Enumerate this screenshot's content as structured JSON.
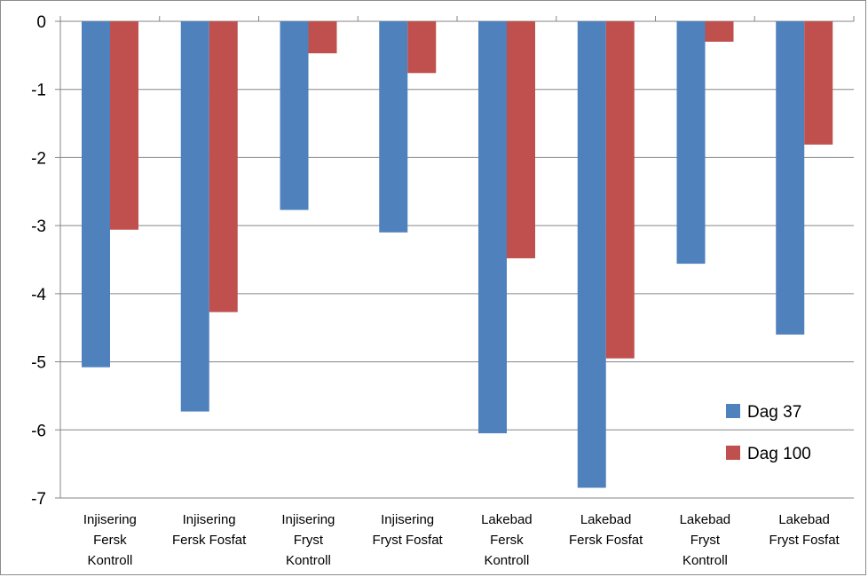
{
  "chart_data": {
    "type": "bar",
    "categories": [
      [
        "Injisering",
        "Fersk",
        "Kontroll"
      ],
      [
        "Injisering",
        "Fersk Fosfat"
      ],
      [
        "Injisering",
        "Fryst",
        "Kontroll"
      ],
      [
        "Injisering",
        "Fryst Fosfat"
      ],
      [
        "Lakebad",
        "Fersk",
        "Kontroll"
      ],
      [
        "Lakebad",
        "Fersk  Fosfat"
      ],
      [
        "Lakebad",
        "Fryst",
        "Kontroll"
      ],
      [
        "Lakebad",
        "Fryst Fosfat"
      ]
    ],
    "series": [
      {
        "name": "Dag 37",
        "color": "#4f81bd",
        "values": [
          -5.08,
          -5.73,
          -2.77,
          -3.1,
          -6.05,
          -6.85,
          -3.56,
          -4.6
        ]
      },
      {
        "name": "Dag 100",
        "color": "#c0504d",
        "values": [
          -3.06,
          -4.27,
          -0.47,
          -0.76,
          -3.48,
          -4.95,
          -0.3,
          -1.81
        ]
      }
    ],
    "y_ticks": [
      "0",
      "-1",
      "-2",
      "-3",
      "-4",
      "-5",
      "-6",
      "-7"
    ],
    "ylim": [
      -7,
      0
    ],
    "grid": true,
    "legend_position": "bottom-right",
    "title": "",
    "xlabel": "",
    "ylabel": ""
  }
}
